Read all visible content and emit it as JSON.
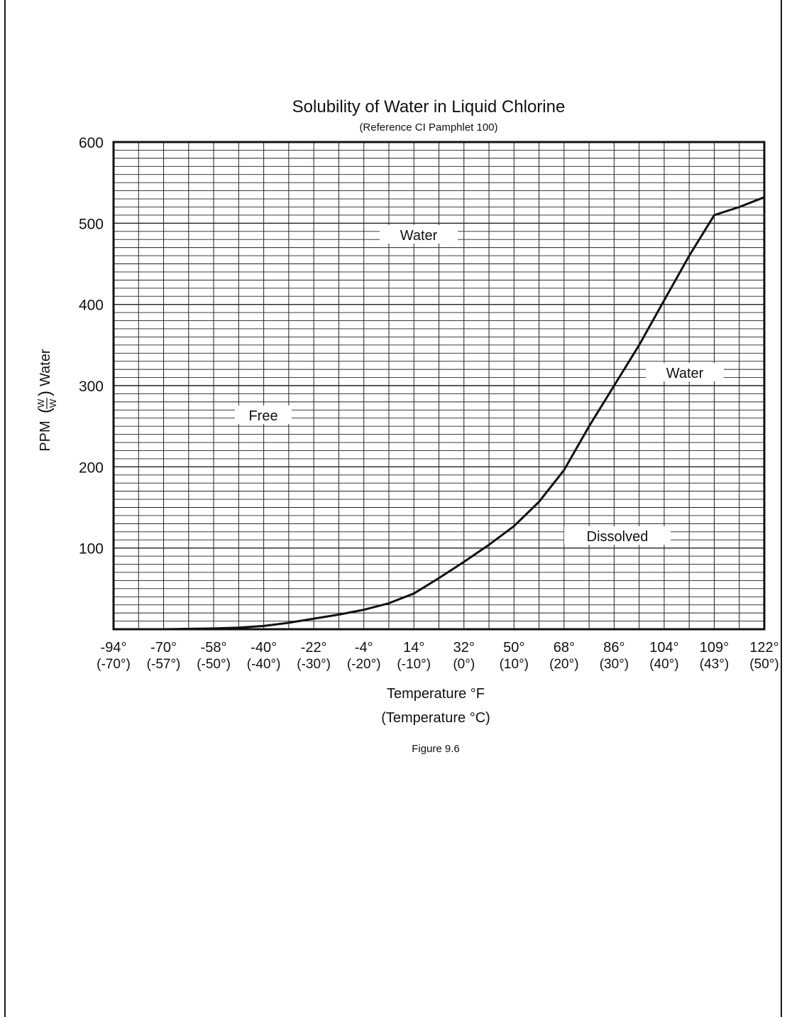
{
  "chart_data": {
    "type": "line",
    "title": "Solubility of Water in Liquid Chlorine",
    "subtitle": "(Reference CI Pamphlet 100)",
    "ylabel": "PPM (W/W) Water",
    "ylabel_prefix": "PPM",
    "ylabel_frac_num": "W",
    "ylabel_frac_den": "W",
    "ylabel_suffix": "Water",
    "xlabel": "Temperature °F",
    "xlabel2": "(Temperature °C)",
    "ylim": [
      0,
      600
    ],
    "y_ticks": [
      "100",
      "200",
      "300",
      "400",
      "500",
      "600"
    ],
    "y_tick_values": [
      100,
      200,
      300,
      400,
      500,
      600
    ],
    "x_ticks_f": [
      "-94°",
      "-70°",
      "-58°",
      "-40°",
      "-22°",
      "-4°",
      "14°",
      "32°",
      "50°",
      "68°",
      "86°",
      "104°",
      "109°",
      "122°"
    ],
    "x_ticks_c": [
      "(-70°)",
      "(-57°)",
      "(-50°)",
      "(-40°)",
      "(-30°)",
      "(-20°)",
      "(-10°)",
      "(0°)",
      "(10°)",
      "(20°)",
      "(30°)",
      "(40°)",
      "(43°)",
      "(50°)"
    ],
    "x_tick_positions": [
      0,
      1,
      2,
      3,
      4,
      5,
      6,
      7,
      8,
      9,
      10,
      11,
      12,
      13
    ],
    "grid": true,
    "series": [
      {
        "x": [
          0,
          1,
          2,
          2.5,
          3,
          3.5,
          4,
          4.5,
          5,
          5.5,
          6,
          6.5,
          7,
          7.5,
          8,
          8.5,
          9,
          9.5,
          10,
          10.5,
          11,
          11.5,
          12,
          12.5,
          13
        ],
        "y": [
          0,
          0,
          1,
          2,
          4,
          8,
          13,
          18,
          24,
          32,
          44,
          63,
          83,
          104,
          127,
          157,
          196,
          250,
          300,
          350,
          405,
          460,
          510,
          520,
          532
        ]
      }
    ],
    "annotations": [
      {
        "text": "Water",
        "region": "free-water-upper"
      },
      {
        "text": "Free",
        "region": "free-water-left"
      },
      {
        "text": "Water",
        "region": "dissolved-water-upper"
      },
      {
        "text": "Dissolved",
        "region": "dissolved-water-lower"
      }
    ]
  },
  "figure_caption": "Figure 9.6"
}
